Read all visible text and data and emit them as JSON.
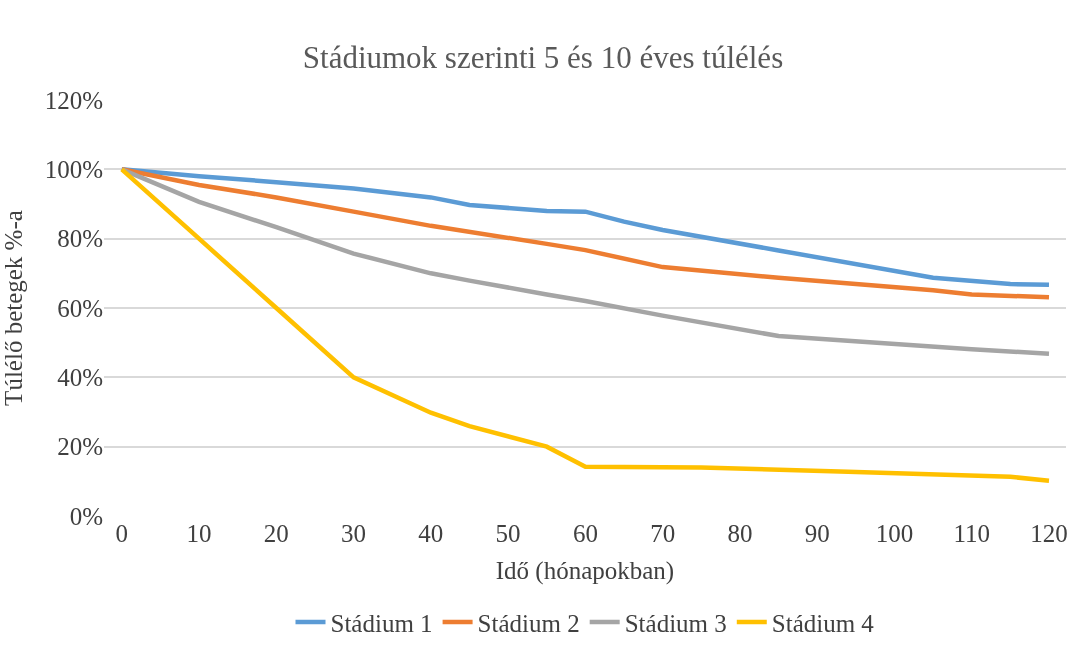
{
  "chart_data": {
    "type": "line",
    "title": "Stádiumok szerinti 5 és 10 éves túlélés",
    "xlabel": "Idő (hónapokban)",
    "ylabel": "Túlélő betegek %-a",
    "xlim": [
      -2.3,
      122.2
    ],
    "xticks": [
      0,
      10,
      20,
      30,
      40,
      50,
      60,
      70,
      80,
      90,
      100,
      110,
      120
    ],
    "ylim": [
      0,
      120
    ],
    "yticks": [
      {
        "value": 0,
        "label": "0%"
      },
      {
        "value": 20,
        "label": "20%"
      },
      {
        "value": 40,
        "label": "40%"
      },
      {
        "value": 60,
        "label": "60%"
      },
      {
        "value": 80,
        "label": "80%"
      },
      {
        "value": 100,
        "label": "100%"
      },
      {
        "value": 120,
        "label": "120%"
      }
    ],
    "grid": "y",
    "legend": "bottom",
    "marker": "none",
    "line_style": "solid",
    "series": [
      {
        "name": "Stádium 1",
        "color": "#5b9bd5",
        "x": [
          0,
          10,
          20,
          30,
          40,
          45,
          55,
          60,
          65,
          70,
          85,
          105,
          115,
          120
        ],
        "values": [
          100,
          98,
          96.3,
          94.5,
          91.9,
          89.7,
          88,
          87.8,
          84.9,
          82.5,
          76.6,
          68.7,
          66.9,
          66.7
        ]
      },
      {
        "name": "Stádium 2",
        "color": "#ed7d31",
        "x": [
          0,
          10,
          20,
          30,
          40,
          55,
          60,
          70,
          85,
          105,
          110,
          120
        ],
        "values": [
          100,
          95.5,
          91.9,
          87.8,
          83.7,
          78.5,
          76.7,
          71.8,
          68.7,
          65.1,
          63.9,
          63.1
        ]
      },
      {
        "name": "Stádium 3",
        "color": "#a5a5a5",
        "x": [
          0,
          10,
          20,
          30,
          40,
          45,
          55,
          60,
          70,
          85,
          110,
          120
        ],
        "values": [
          100,
          90.6,
          83.3,
          75.7,
          70,
          67.9,
          63.9,
          62,
          57.8,
          51.9,
          48.1,
          46.8
        ]
      },
      {
        "name": "Stádium 4",
        "color": "#ffc000",
        "x": [
          0,
          10,
          20,
          30,
          40,
          45,
          55,
          60,
          75,
          94,
          115,
          120
        ],
        "values": [
          100,
          80,
          60,
          40,
          29.8,
          25.9,
          20,
          14.2,
          14,
          12.8,
          11.3,
          10.2
        ]
      }
    ]
  }
}
